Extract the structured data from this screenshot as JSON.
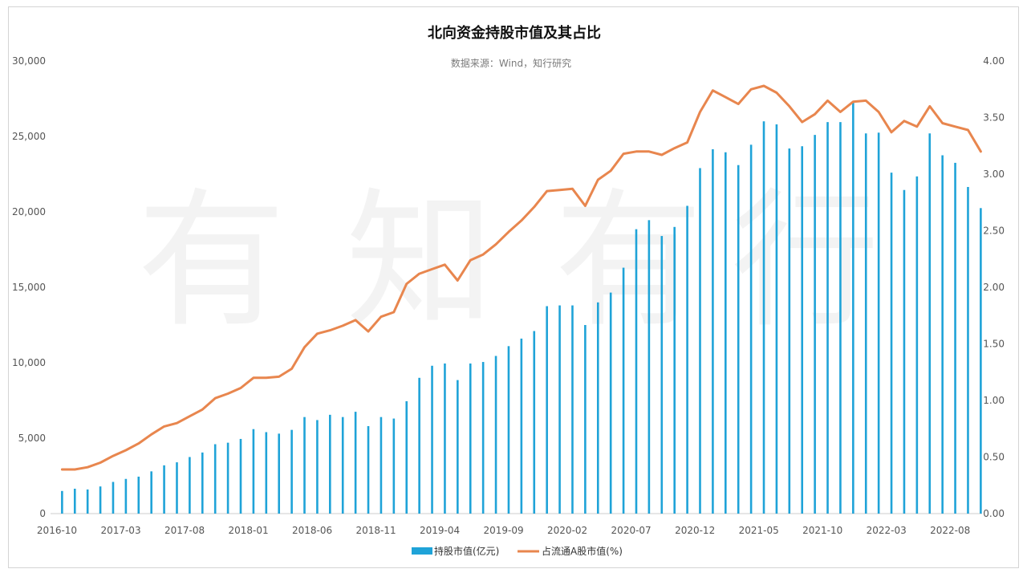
{
  "title": "北向资金持股市值及其占比",
  "subtitle": "数据来源：Wind，知行研究",
  "watermark": [
    "有",
    "知",
    "有",
    "行"
  ],
  "colors": {
    "bar": "#1fa3d8",
    "line": "#e8864e",
    "grid": "#e6e6e6",
    "axis": "#cccccc"
  },
  "chart_data": {
    "type": "bar",
    "title": "北向资金持股市值及其占比",
    "x": [
      "2016-10",
      "2016-11",
      "2016-12",
      "2017-01",
      "2017-02",
      "2017-03",
      "2017-04",
      "2017-05",
      "2017-06",
      "2017-07",
      "2017-08",
      "2017-09",
      "2017-10",
      "2017-11",
      "2017-12",
      "2018-01",
      "2018-02",
      "2018-03",
      "2018-04",
      "2018-05",
      "2018-06",
      "2018-07",
      "2018-08",
      "2018-09",
      "2018-10",
      "2018-11",
      "2018-12",
      "2019-01",
      "2019-02",
      "2019-03",
      "2019-04",
      "2019-05",
      "2019-06",
      "2019-07",
      "2019-08",
      "2019-09",
      "2019-10",
      "2019-11",
      "2019-12",
      "2020-01",
      "2020-02",
      "2020-03",
      "2020-04",
      "2020-05",
      "2020-06",
      "2020-07",
      "2020-08",
      "2020-09",
      "2020-10",
      "2020-11",
      "2020-12",
      "2021-01",
      "2021-02",
      "2021-03",
      "2021-04",
      "2021-05",
      "2021-06",
      "2021-07",
      "2021-08",
      "2021-09",
      "2021-10",
      "2021-11",
      "2021-12",
      "2022-01",
      "2022-02",
      "2022-03",
      "2022-04",
      "2022-05",
      "2022-06",
      "2022-07",
      "2022-08",
      "2022-09",
      "2022-10"
    ],
    "x_ticks": [
      "2016-10",
      "2017-03",
      "2017-08",
      "2018-01",
      "2018-06",
      "2018-11",
      "2019-04",
      "2019-09",
      "2020-02",
      "2020-07",
      "2020-12",
      "2021-05",
      "2021-10",
      "2022-03",
      "2022-08"
    ],
    "series": [
      {
        "name": "持股市值(亿元)",
        "type": "bar",
        "axis": "left",
        "values": [
          1500,
          1650,
          1600,
          1800,
          2100,
          2300,
          2450,
          2800,
          3200,
          3400,
          3750,
          4050,
          4600,
          4700,
          4950,
          5600,
          5400,
          5300,
          5550,
          6400,
          6200,
          6550,
          6400,
          6750,
          5800,
          6400,
          6300,
          7450,
          9000,
          9800,
          9950,
          8850,
          9950,
          10050,
          10450,
          11100,
          11600,
          12100,
          13750,
          13800,
          13800,
          12500,
          14000,
          14650,
          16300,
          18850,
          19450,
          18400,
          19000,
          20400,
          22900,
          24150,
          23950,
          23100,
          24450,
          26000,
          25800,
          24200,
          24350,
          25100,
          25950,
          25950,
          27300,
          25200,
          25250,
          22600,
          21450,
          22350,
          25200,
          23750,
          23250,
          21650,
          20250
        ]
      },
      {
        "name": "占流通A股市值(%)",
        "type": "line",
        "axis": "right",
        "values": [
          0.39,
          0.39,
          0.41,
          0.45,
          0.51,
          0.56,
          0.62,
          0.7,
          0.77,
          0.8,
          0.86,
          0.92,
          1.02,
          1.06,
          1.11,
          1.2,
          1.2,
          1.21,
          1.28,
          1.47,
          1.59,
          1.62,
          1.66,
          1.71,
          1.61,
          1.74,
          1.78,
          2.03,
          2.12,
          2.16,
          2.2,
          2.06,
          2.24,
          2.29,
          2.38,
          2.49,
          2.59,
          2.71,
          2.85,
          2.86,
          2.87,
          2.72,
          2.95,
          3.03,
          3.18,
          3.2,
          3.2,
          3.17,
          3.23,
          3.28,
          3.55,
          3.74,
          3.68,
          3.62,
          3.75,
          3.78,
          3.72,
          3.6,
          3.46,
          3.53,
          3.65,
          3.55,
          3.64,
          3.65,
          3.55,
          3.37,
          3.47,
          3.42,
          3.6,
          3.45,
          3.42,
          3.39,
          3.2
        ]
      }
    ],
    "y_left": {
      "min": 0,
      "max": 30000,
      "ticks": [
        "0",
        "5,000",
        "10,000",
        "15,000",
        "20,000",
        "25,000",
        "30,000"
      ]
    },
    "y_right": {
      "min": 0,
      "max": 4,
      "ticks": [
        "0.00",
        "0.50",
        "1.00",
        "1.50",
        "2.00",
        "2.50",
        "3.00",
        "3.50",
        "4.00"
      ]
    },
    "grid": false,
    "legend": "bottom-center"
  }
}
